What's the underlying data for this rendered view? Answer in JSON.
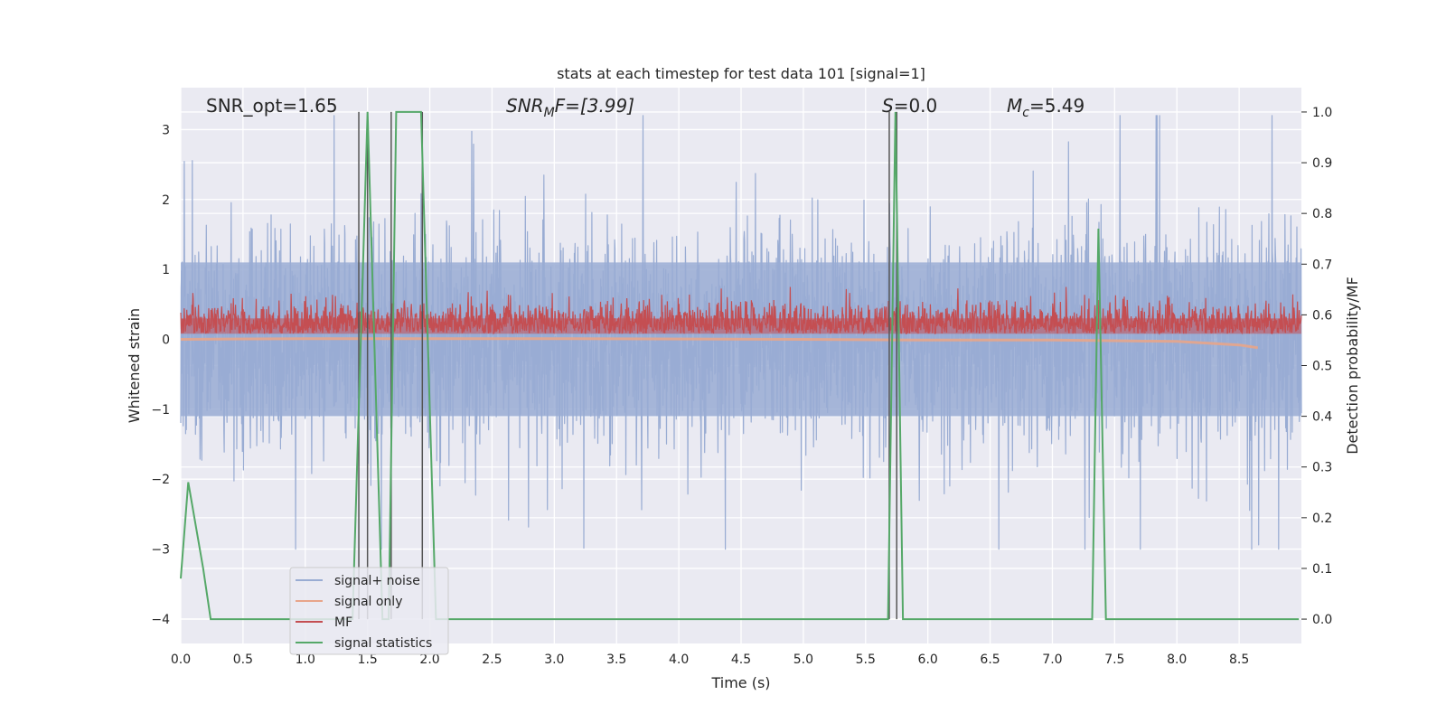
{
  "chart_data": {
    "type": "line",
    "title": "stats at each timestep for test data 101 [signal=1]",
    "xlabel": "Time (s)",
    "ylabel": "Whitened strain",
    "ylabel_right": "Detection probability/MF",
    "xlim": [
      0.0,
      9.0
    ],
    "ylim": [
      -4.35,
      3.6
    ],
    "ylim_right": [
      -0.048,
      1.048
    ],
    "x_ticks": [
      "0.0",
      "0.5",
      "1.0",
      "1.5",
      "2.0",
      "2.5",
      "3.0",
      "3.5",
      "4.0",
      "4.5",
      "5.0",
      "5.5",
      "6.0",
      "6.5",
      "7.0",
      "7.5",
      "8.0",
      "8.5"
    ],
    "y_ticks": [
      "3",
      "2",
      "1",
      "0",
      "−1",
      "−2",
      "−3",
      "−4"
    ],
    "y_right_ticks": [
      "1.0",
      "0.9",
      "0.8",
      "0.7",
      "0.6",
      "0.5",
      "0.4",
      "0.3",
      "0.2",
      "0.1",
      "0.0"
    ],
    "grid": true,
    "legend_position": "lower-left",
    "annotations": {
      "snr_opt": "SNR_opt=1.65",
      "snr_mf_name": "SNR",
      "snr_mf_sub": "M",
      "snr_mf_rest": "F=[3.99]",
      "s_name": "S",
      "s_rest": "=0.0",
      "mc_name": "M",
      "mc_sub": "c",
      "mc_rest": "=5.49"
    },
    "vertical_markers_x": [
      1.43,
      1.5,
      1.69,
      1.94,
      5.69,
      5.75
    ],
    "series": [
      {
        "name": "signal+ noise",
        "color": "#99acd3",
        "axis": "left",
        "description_level": {
          "x_range": [
            0.0,
            9.0
          ],
          "typical_range": [
            -1.1,
            1.1
          ],
          "peak_range": [
            -3.0,
            3.2
          ]
        }
      },
      {
        "name": "signal only",
        "color": "#e8a58a",
        "axis": "left",
        "x": [
          0.0,
          1.0,
          3.0,
          5.0,
          6.0,
          7.0,
          7.5,
          8.0,
          8.3,
          8.5,
          8.65
        ],
        "y": [
          0.0,
          0.01,
          0.01,
          0.0,
          -0.01,
          -0.01,
          -0.02,
          -0.03,
          -0.06,
          -0.08,
          -0.12
        ]
      },
      {
        "name": "MF",
        "color": "#c44e52",
        "axis": "left",
        "description_level": {
          "x_range": [
            0.0,
            9.0
          ],
          "typical_range": [
            0.0,
            0.55
          ],
          "peak_range": [
            0.0,
            0.75
          ]
        }
      },
      {
        "name": "signal statistics",
        "color": "#55a868",
        "axis": "right",
        "x": [
          0.0,
          0.06,
          0.18,
          0.24,
          1.38,
          1.5,
          1.62,
          1.67,
          1.73,
          1.93,
          2.05,
          5.68,
          5.74,
          5.8,
          7.32,
          7.37,
          7.43,
          8.98
        ],
        "y": [
          0.08,
          0.27,
          0.1,
          0.0,
          0.0,
          1.0,
          0.0,
          0.0,
          1.0,
          1.0,
          0.0,
          0.0,
          1.0,
          0.0,
          0.0,
          0.77,
          0.0,
          0.0
        ]
      }
    ]
  }
}
